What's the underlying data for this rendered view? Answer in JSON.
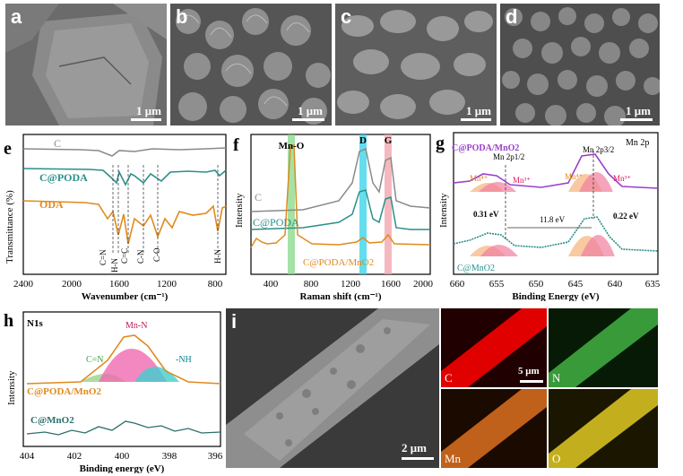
{
  "panels": {
    "a": {
      "label": "a",
      "scale": "1 μm"
    },
    "b": {
      "label": "b",
      "scale": "1 μm"
    },
    "c": {
      "label": "c",
      "scale": "1 μm"
    },
    "d": {
      "label": "d",
      "scale": "1 μm"
    },
    "i": {
      "label": "i",
      "scale": "2 μm"
    },
    "edx": {
      "C": "C",
      "N": "N",
      "Mn": "Mn",
      "O": "O",
      "scale": "5 μm"
    }
  },
  "colors": {
    "C": "#8a8a8a",
    "C@PODA": "#2a8f8a",
    "ODA": "#e08a1e",
    "C@PODA/MnO2": "#9b3fc8",
    "C@MnO2": "#2a8f8a",
    "highlight_green": "#7fd67f",
    "highlight_cyan": "#2fd3e8",
    "highlight_pink": "#f2a0a8"
  },
  "chart_data": [
    {
      "panel": "e",
      "type": "line",
      "ylabel": "Transmittance (%)",
      "xlabel": "Wavenumber (cm⁻¹)",
      "xlim": [
        2400,
        700
      ],
      "xticks": [
        "2400",
        "2000",
        "1600",
        "1200",
        "800"
      ],
      "series": [
        {
          "name": "C"
        },
        {
          "name": "C@PODA"
        },
        {
          "name": "ODA"
        }
      ],
      "annotations": [
        "C=N",
        "H-N",
        "C=C",
        "C-N",
        "C-O",
        "H-N"
      ]
    },
    {
      "panel": "f",
      "type": "line",
      "ylabel": "Intensity",
      "xlabel": "Raman shift (cm⁻¹)",
      "xlim": [
        200,
        2000
      ],
      "xticks": [
        "400",
        "800",
        "1200",
        "1600",
        "2000"
      ],
      "series": [
        {
          "name": "C"
        },
        {
          "name": "C@PODA"
        },
        {
          "name": "C@PODA/MnO2"
        }
      ],
      "annotations": [
        "Mn-O",
        "D",
        "G"
      ]
    },
    {
      "panel": "g",
      "type": "line",
      "title": "Mn 2p",
      "ylabel": "Intensity",
      "xlabel": "Binding Energy (eV)",
      "xlim": [
        660,
        635
      ],
      "xticks": [
        "660",
        "655",
        "650",
        "645",
        "640",
        "635"
      ],
      "series": [
        {
          "name": "C@PODA/MnO2"
        },
        {
          "name": "C@MnO2"
        }
      ],
      "annotations": [
        "Mn 2p1/2",
        "Mn 2p3/2",
        "Mn⁴⁺",
        "Mn³⁺",
        "Mn⁴⁺",
        "Mn³⁺",
        "0.31 eV",
        "11.8 eV",
        "0.22 eV"
      ]
    },
    {
      "panel": "h",
      "type": "line",
      "title": "N1s",
      "ylabel": "Intensity",
      "xlabel": "Binding energy (eV)",
      "xlim": [
        404,
        396
      ],
      "xticks": [
        "404",
        "402",
        "400",
        "398",
        "396"
      ],
      "series": [
        {
          "name": "C@PODA/MnO2"
        },
        {
          "name": "C@MnO2"
        }
      ],
      "annotations": [
        "Mn-N",
        "C=N",
        "-NH"
      ]
    }
  ]
}
